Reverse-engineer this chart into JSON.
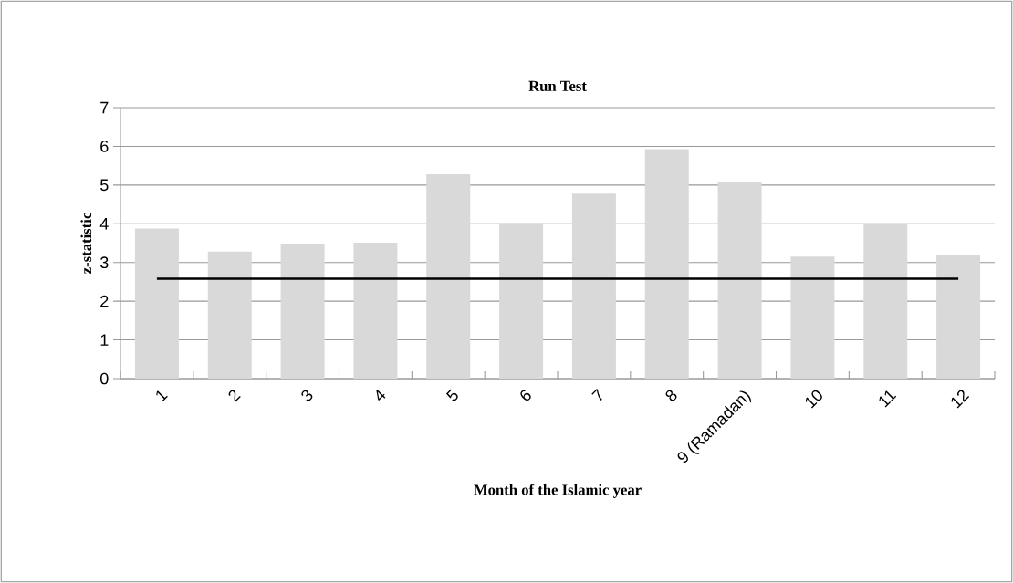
{
  "chart_data": {
    "type": "bar",
    "title": "Run Test",
    "xlabel": "Month of the Islamic year",
    "ylabel": "z-statistic",
    "categories": [
      "1",
      "2",
      "3",
      "4",
      "5",
      "6",
      "7",
      "8",
      "9 (Ramadan)",
      "10",
      "11",
      "12"
    ],
    "series": [
      {
        "color": "#d9d9d9",
        "values": [
          3.88,
          3.28,
          3.49,
          3.51,
          5.28,
          4.01,
          4.78,
          5.93,
          5.09,
          3.15,
          4.0,
          3.18
        ]
      },
      {
        "type": "line",
        "color": "#000000",
        "values": [
          2.58,
          2.58,
          2.58,
          2.58,
          2.58,
          2.58,
          2.58,
          2.58,
          2.58,
          2.58,
          2.58,
          2.58
        ]
      }
    ],
    "ylim": [
      0,
      7
    ],
    "yticks": [
      0,
      1,
      2,
      3,
      4,
      5,
      6,
      7
    ],
    "grid": "y"
  }
}
